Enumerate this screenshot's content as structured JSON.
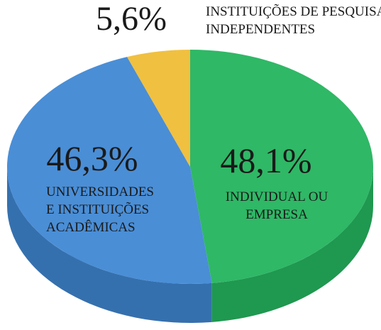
{
  "chart_data": {
    "type": "pie",
    "categories": [
      "INDIVIDUAL OU\nEMPRESA",
      "UNIVERSIDADES\nE INSTITUIÇÕES\nACADÊMICAS",
      "INSTITUIÇÕES DE PESQUISA\nINDEPENDENTES"
    ],
    "values": [
      48.1,
      46.3,
      5.6
    ],
    "value_labels": [
      "48,1%",
      "46,3%",
      "5,6%"
    ],
    "colors": [
      "#2fb866",
      "#4a8ed6",
      "#f0c040"
    ],
    "side_colors": [
      "#1f9850",
      "#3570ae",
      "#c9a030"
    ]
  }
}
